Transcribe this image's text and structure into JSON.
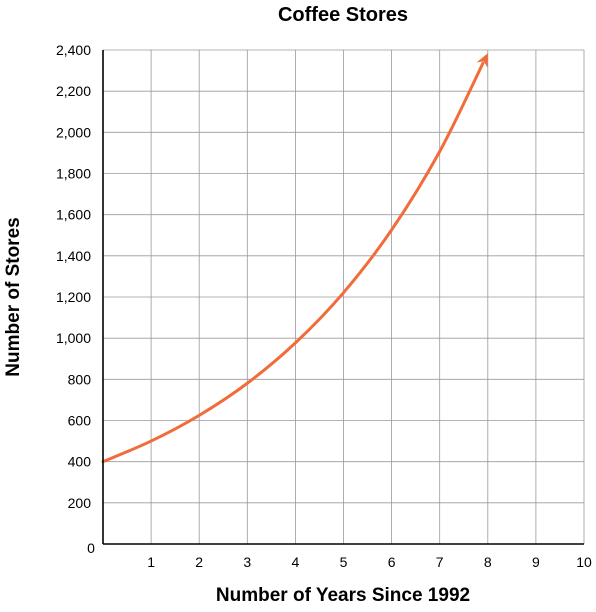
{
  "chart_data": {
    "type": "line",
    "title": "Coffee Stores",
    "xlabel": "Number of Years Since 1992",
    "ylabel": "Number of Stores",
    "xlim": [
      0,
      10
    ],
    "ylim": [
      0,
      2400
    ],
    "x_ticks": [
      1,
      2,
      3,
      4,
      5,
      6,
      7,
      8,
      9,
      10
    ],
    "y_ticks": [
      0,
      200,
      400,
      600,
      800,
      1000,
      1200,
      1400,
      1600,
      1800,
      2000,
      2200,
      2400
    ],
    "x_tick_labels": [
      "1",
      "2",
      "3",
      "4",
      "5",
      "6",
      "7",
      "8",
      "9",
      "10"
    ],
    "y_tick_labels": [
      "0",
      "200",
      "400",
      "600",
      "800",
      "1,000",
      "1,200",
      "1,400",
      "1,600",
      "1,800",
      "2,000",
      "2,200",
      "2,400"
    ],
    "grid": true,
    "legend": "none",
    "series": [
      {
        "color": "#f26b3a",
        "arrow_end": true,
        "x": [
          0,
          1,
          2,
          3,
          4,
          5,
          6,
          7,
          8
        ],
        "y": [
          400,
          500,
          625,
          781,
          977,
          1221,
          1526,
          1907,
          2384
        ]
      }
    ]
  }
}
